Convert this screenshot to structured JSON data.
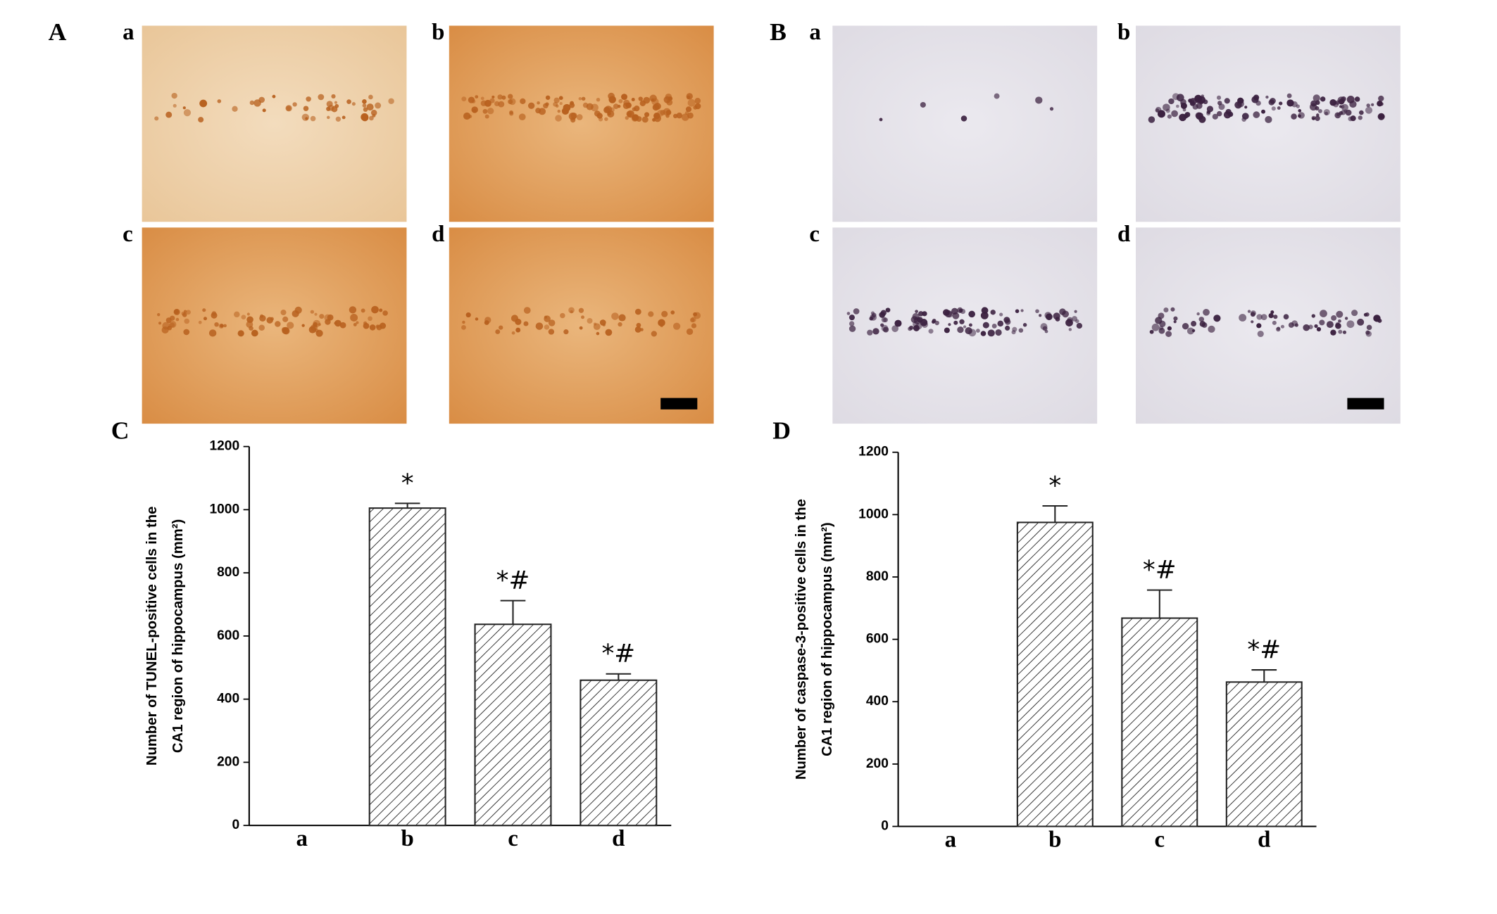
{
  "images": [
    {
      "label": "A",
      "panels": [
        "a",
        "b",
        "c",
        "d"
      ]
    },
    {
      "label": "B",
      "panels": [
        "a",
        "b",
        "c",
        "d"
      ]
    }
  ],
  "chart_data": [
    {
      "type": "bar",
      "panel": "C",
      "ylabel": [
        "Number of TUNEL-positive cells in the",
        "CA1 region of hippocampus (mm²)"
      ],
      "categories": [
        "a",
        "b",
        "c",
        "d"
      ],
      "values": [
        0,
        1005,
        637,
        460
      ],
      "errors": [
        0,
        15,
        75,
        20
      ],
      "annotations": [
        null,
        "*",
        "*#",
        "*#"
      ],
      "ylim": [
        0,
        1200
      ],
      "yticks": [
        0,
        200,
        400,
        600,
        800,
        1000,
        1200
      ],
      "hatch": true,
      "color": "#222222"
    },
    {
      "type": "bar",
      "panel": "D",
      "ylabel": [
        "Number of caspase-3-positive cells in the",
        "CA1 region of hippocampus (mm²)"
      ],
      "categories": [
        "a",
        "b",
        "c",
        "d"
      ],
      "values": [
        0,
        975,
        668,
        463
      ],
      "errors": [
        0,
        53,
        90,
        39
      ],
      "annotations": [
        null,
        "*",
        "*#",
        "*#"
      ],
      "ylim": [
        0,
        1200
      ],
      "yticks": [
        0,
        200,
        400,
        600,
        800,
        1000,
        1200
      ],
      "hatch": true,
      "color": "#222222"
    }
  ]
}
